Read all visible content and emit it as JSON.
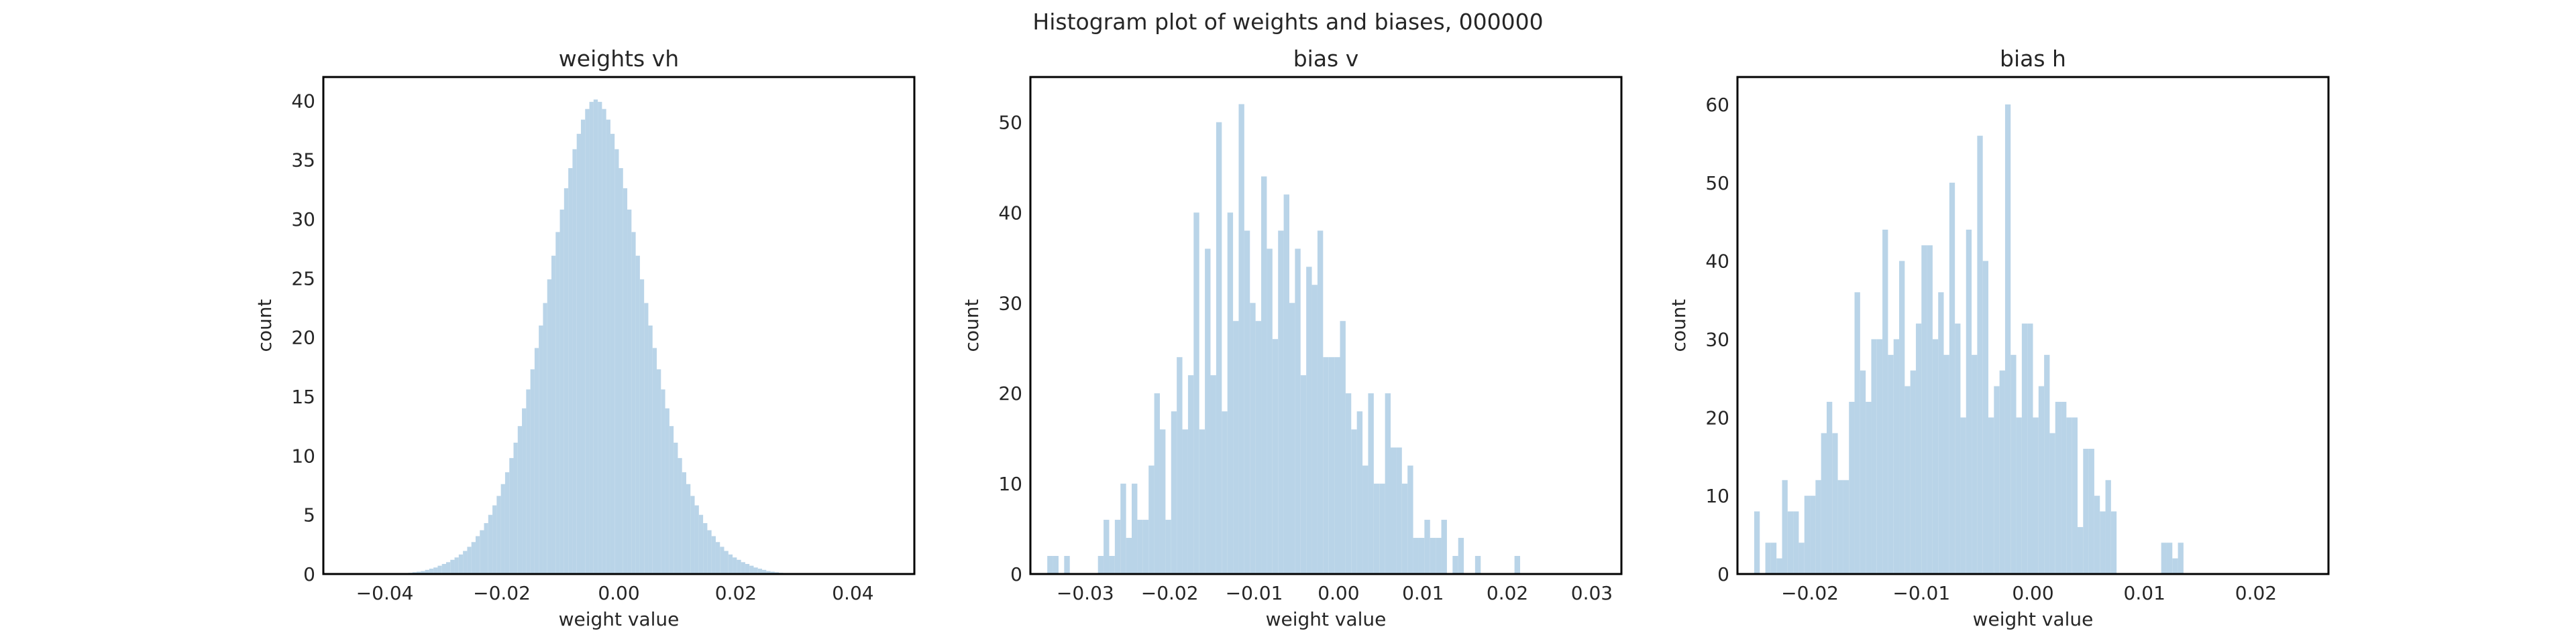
{
  "figure": {
    "suptitle": "Histogram plot of weights and biases, 000000"
  },
  "chart_data": [
    {
      "type": "bar",
      "title": "weights vh",
      "xlabel": "weight value",
      "ylabel": "count",
      "bar_color": "#b9d4e8",
      "xlim": [
        -0.0505,
        0.0505
      ],
      "ylim": [
        0,
        42
      ],
      "xticks": [
        -0.04,
        -0.02,
        0.0,
        0.02,
        0.04
      ],
      "xtick_labels": [
        "−0.04",
        "−0.02",
        "0.00",
        "0.02",
        "0.04"
      ],
      "yticks": [
        0,
        5,
        10,
        15,
        20,
        25,
        30,
        35,
        40
      ],
      "bin_start": -0.036,
      "bin_width": 0.00072,
      "values": [
        0.1,
        0.15,
        0.2,
        0.25,
        0.35,
        0.45,
        0.55,
        0.7,
        0.85,
        1.0,
        1.2,
        1.4,
        1.65,
        1.95,
        2.3,
        2.7,
        3.2,
        3.7,
        4.3,
        5.0,
        5.8,
        6.6,
        7.6,
        8.6,
        9.8,
        11.1,
        12.5,
        14.0,
        15.6,
        17.3,
        19.1,
        21.0,
        22.9,
        24.9,
        26.9,
        28.9,
        30.8,
        32.6,
        34.3,
        35.9,
        37.2,
        38.4,
        39.3,
        39.9,
        40.1,
        39.9,
        39.3,
        38.4,
        37.2,
        35.9,
        34.3,
        32.6,
        30.8,
        28.9,
        26.9,
        24.9,
        22.9,
        21.0,
        19.1,
        17.3,
        15.6,
        14.0,
        12.5,
        11.1,
        9.8,
        8.6,
        7.6,
        6.6,
        5.8,
        5.0,
        4.3,
        3.7,
        3.2,
        2.7,
        2.3,
        1.95,
        1.65,
        1.4,
        1.2,
        1.0,
        0.85,
        0.7,
        0.55,
        0.45,
        0.35,
        0.25,
        0.2,
        0.15,
        0.1,
        0.08
      ]
    },
    {
      "type": "bar",
      "title": "bias v",
      "xlabel": "weight value",
      "ylabel": "count",
      "bar_color": "#b9d4e8",
      "xlim": [
        -0.0365,
        0.0335
      ],
      "ylim": [
        0,
        55
      ],
      "xticks": [
        -0.03,
        -0.02,
        -0.01,
        0.0,
        0.01,
        0.02,
        0.03
      ],
      "xtick_labels": [
        "−0.03",
        "−0.02",
        "−0.01",
        "0.00",
        "0.01",
        "0.02",
        "0.03"
      ],
      "yticks": [
        0,
        10,
        20,
        30,
        40,
        50
      ],
      "bin_start": -0.0345,
      "bin_width": 0.0006667,
      "values": [
        2,
        2,
        0,
        2,
        0,
        0,
        0,
        0,
        0,
        2,
        6,
        2,
        6,
        10,
        4,
        10,
        6,
        6,
        12,
        20,
        16,
        6,
        18,
        24,
        16,
        22,
        40,
        16,
        36,
        22,
        50,
        18,
        40,
        28,
        52,
        38,
        30,
        28,
        44,
        36,
        26,
        38,
        42,
        30,
        36,
        22,
        34,
        32,
        38,
        24,
        24,
        24,
        28,
        20,
        16,
        18,
        12,
        20,
        10,
        10,
        20,
        14,
        14,
        10,
        12,
        4,
        4,
        6,
        4,
        4,
        6,
        0,
        2,
        4,
        0,
        0,
        2,
        0,
        0,
        0,
        0,
        0,
        0,
        2
      ]
    },
    {
      "type": "bar",
      "title": "bias h",
      "xlabel": "weight value",
      "ylabel": "count",
      "bar_color": "#b9d4e8",
      "xlim": [
        -0.0265,
        0.0265
      ],
      "ylim": [
        0,
        63.5
      ],
      "xticks": [
        -0.02,
        -0.01,
        0.0,
        0.01,
        0.02
      ],
      "xtick_labels": [
        "−0.02",
        "−0.01",
        "0.00",
        "0.01",
        "0.02"
      ],
      "yticks": [
        0,
        10,
        20,
        30,
        40,
        50,
        60
      ],
      "bin_start": -0.025,
      "bin_width": 0.0005,
      "values": [
        8,
        0,
        4,
        4,
        2,
        12,
        8,
        8,
        4,
        10,
        10,
        12,
        18,
        22,
        18,
        12,
        12,
        22,
        36,
        26,
        22,
        30,
        30,
        44,
        28,
        30,
        40,
        24,
        26,
        32,
        42,
        42,
        30,
        36,
        28,
        50,
        32,
        20,
        44,
        28,
        56,
        40,
        20,
        24,
        26,
        60,
        28,
        20,
        32,
        32,
        20,
        24,
        28,
        18,
        22,
        22,
        20,
        20,
        6,
        16,
        16,
        10,
        8,
        12,
        8,
        0,
        0,
        0,
        0,
        0,
        0,
        0,
        0,
        4,
        4,
        2,
        4,
        0
      ]
    }
  ]
}
